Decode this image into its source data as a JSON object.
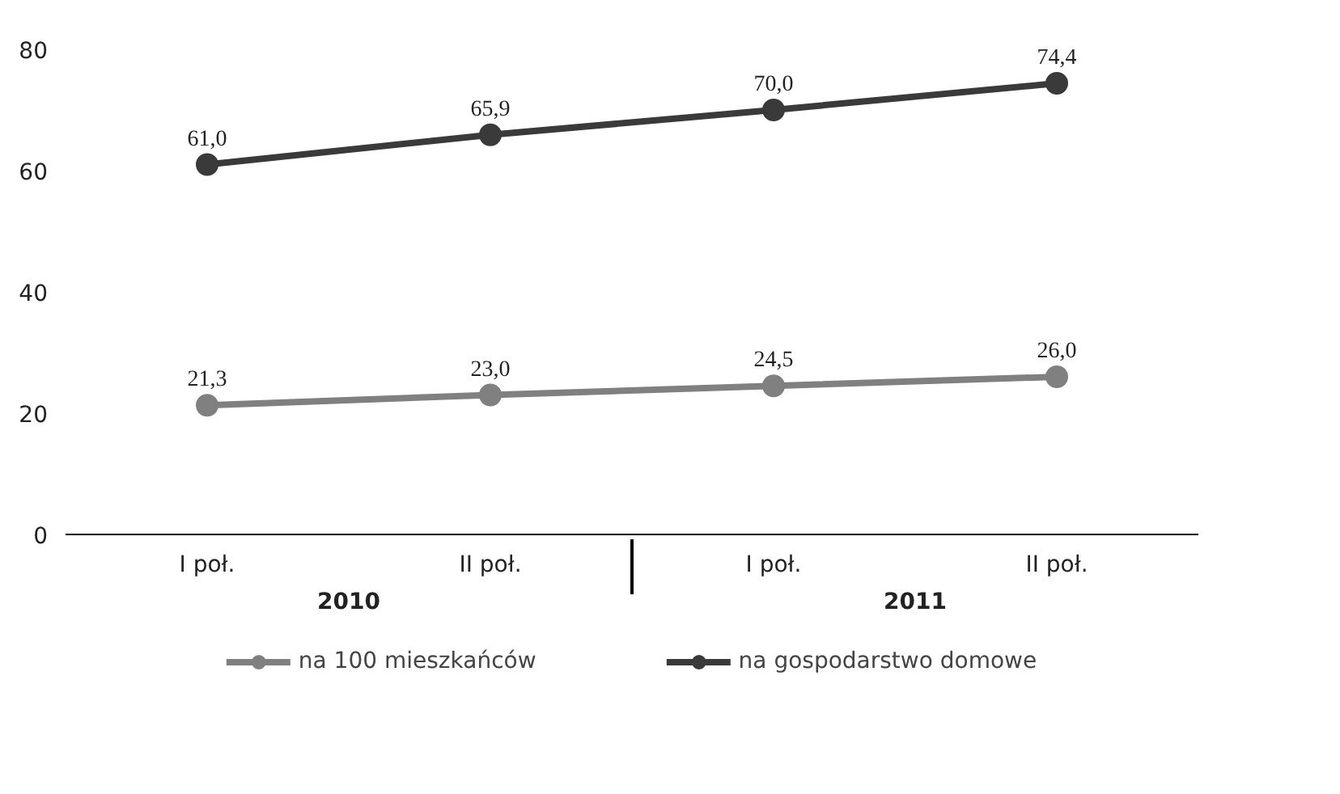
{
  "chart_data": {
    "type": "line",
    "categories": [
      "I poł.",
      "II poł.",
      "I poł.",
      "II poł."
    ],
    "annotations": [
      "2010",
      "2011"
    ],
    "series": [
      {
        "name": "na 100 mieszkańców",
        "color": "#808080",
        "values": [
          21.3,
          23.0,
          24.5,
          26.0
        ],
        "value_labels": [
          "21,3",
          "23,0",
          "24,5",
          "26,0"
        ]
      },
      {
        "name": "na gospodarstwo domowe",
        "color": "#3a3a3a",
        "values": [
          61.0,
          65.9,
          70.0,
          74.4
        ],
        "value_labels": [
          "61,0",
          "65,9",
          "70,0",
          "74,4"
        ]
      }
    ],
    "ylim": [
      0,
      80
    ],
    "yticks": [
      0,
      20,
      40,
      60,
      80
    ],
    "grid": false,
    "legend": "bottom",
    "marker": "circle",
    "line_style": "solid"
  }
}
